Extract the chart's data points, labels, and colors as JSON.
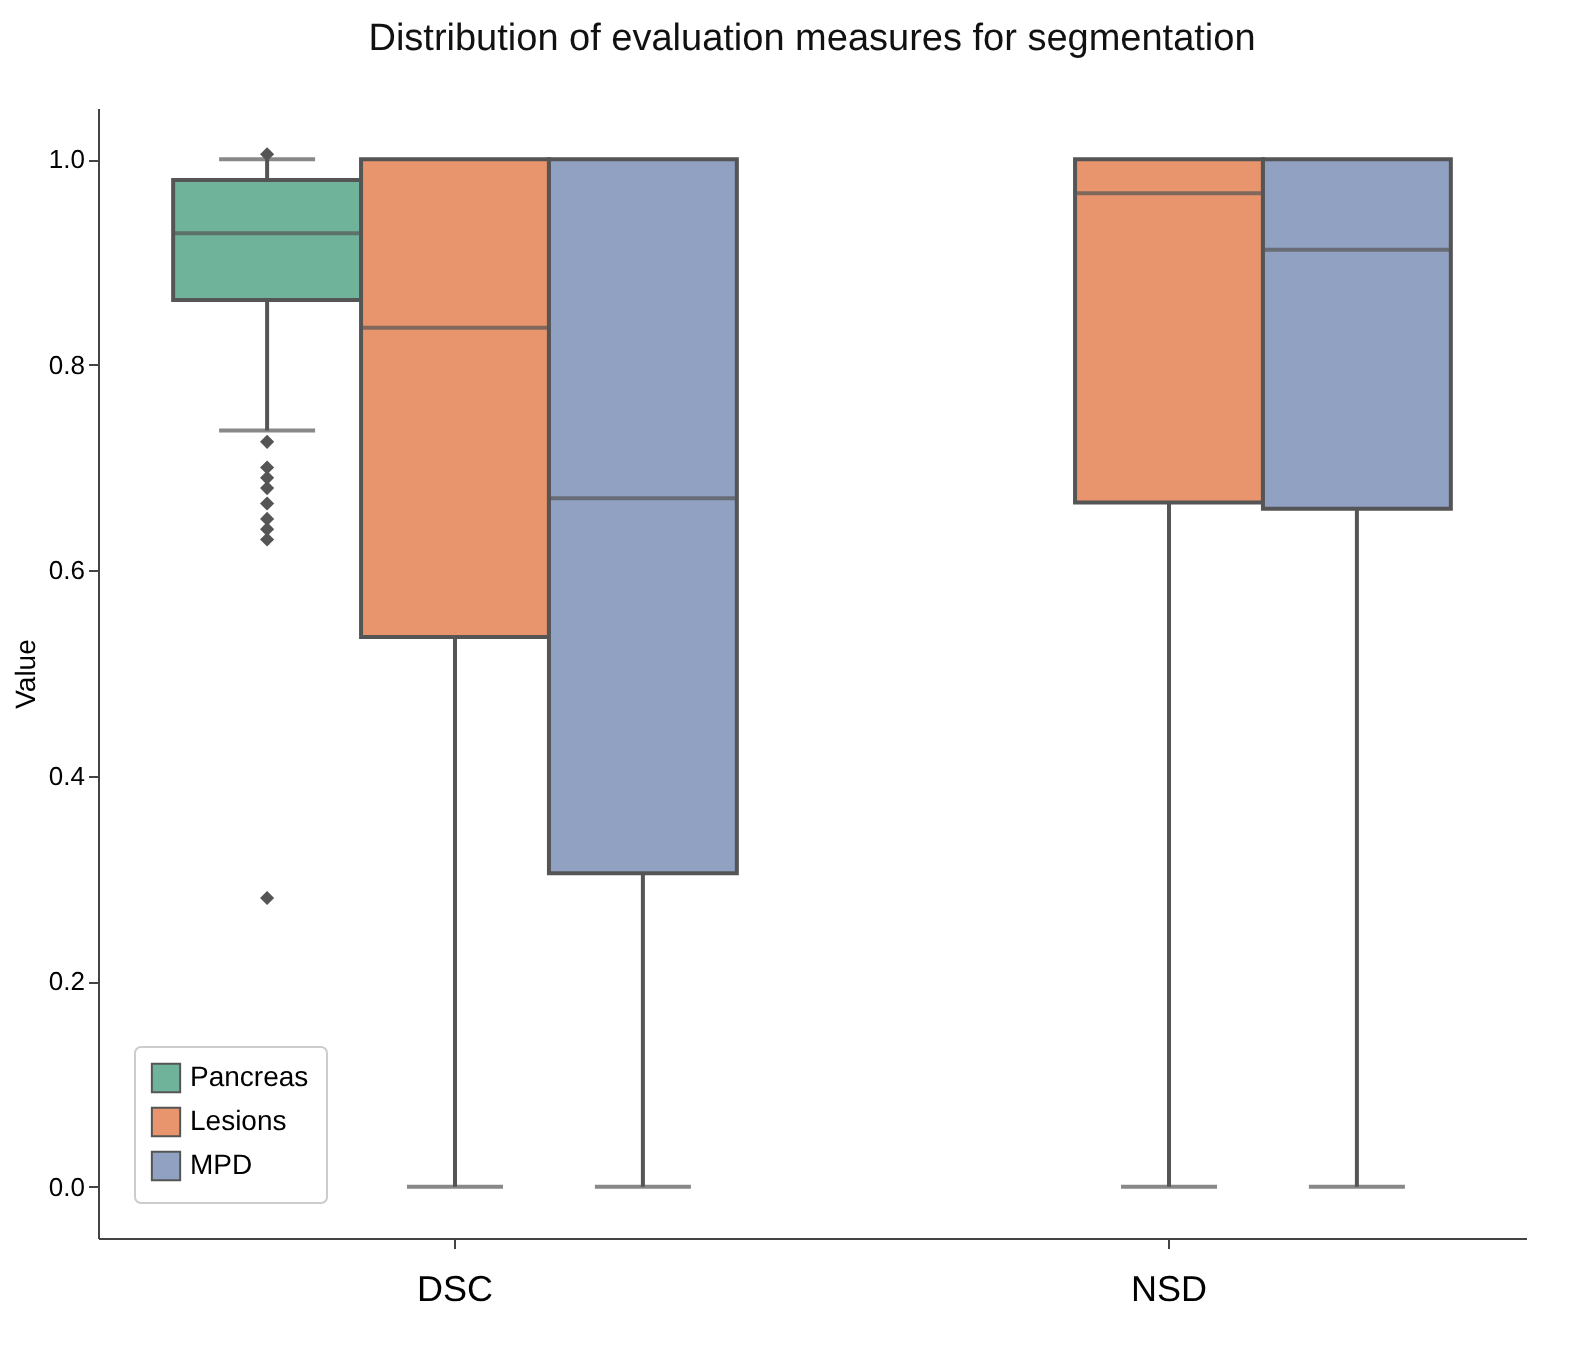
{
  "chart_data": {
    "type": "box",
    "title": "Distribution of evaluation measures for segmentation",
    "ylabel": "Value",
    "categories": [
      "DSC",
      "NSD"
    ],
    "series": [
      {
        "name": "Pancreas",
        "color": "#6fb49a",
        "boxes": [
          {
            "low": 0.736,
            "q1": 0.863,
            "median": 0.928,
            "q3": 0.98,
            "high": 1.0,
            "outliers": [
              1.005,
              0.725,
              0.7,
              0.69,
              0.68,
              0.665,
              0.65,
              0.64,
              0.63,
              0.281
            ]
          },
          null
        ]
      },
      {
        "name": "Lesions",
        "color": "#e8956e",
        "boxes": [
          {
            "low": 0.0,
            "q1": 0.535,
            "median": 0.836,
            "q3": 1.0,
            "high": 1.0
          },
          {
            "low": 0.0,
            "q1": 0.666,
            "median": 0.967,
            "q3": 1.0,
            "high": 1.0
          }
        ]
      },
      {
        "name": "MPD",
        "color": "#91a1c2",
        "boxes": [
          {
            "low": 0.0,
            "q1": 0.305,
            "median": 0.67,
            "q3": 1.0,
            "high": 1.0
          },
          {
            "low": 0.0,
            "q1": 0.66,
            "median": 0.912,
            "q3": 1.0,
            "high": 1.0
          }
        ]
      }
    ],
    "ylim": [
      -0.05,
      1.05
    ],
    "yticks": [
      {
        "value": 0,
        "label": "0.0"
      },
      {
        "value": 0.2,
        "label": "0.2"
      },
      {
        "value": 0.4,
        "label": "0.4"
      },
      {
        "value": 0.6,
        "label": "0.6"
      },
      {
        "value": 0.8,
        "label": "0.8"
      },
      {
        "value": 1.0,
        "label": "1.0"
      }
    ],
    "grid": false,
    "legend": "bottom left",
    "marker": "diamond"
  }
}
